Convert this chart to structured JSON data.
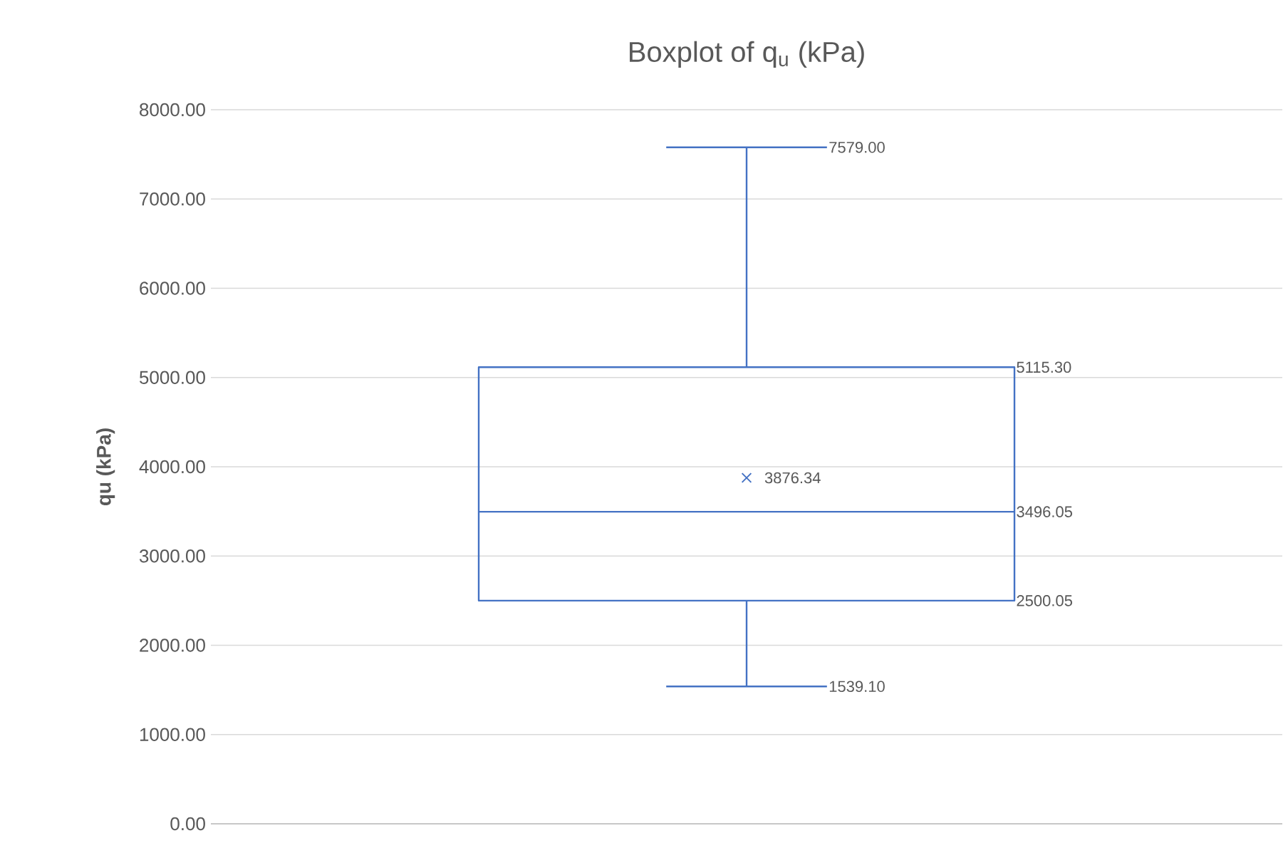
{
  "chart_data": {
    "type": "box",
    "title": "Boxplot of q$_{u}$ (kPa)",
    "ylabel": "qu (kPa)",
    "categories": [
      null
    ],
    "boxes": [
      {
        "low": 1539.1,
        "q1": 2500.05,
        "median": 3496.05,
        "q3": 5115.3,
        "high": 7579.0,
        "mean": 3876.34
      }
    ],
    "color": "#4472c4",
    "ylim": [
      0,
      8000
    ],
    "yticks": [
      {
        "value": 0,
        "label": "0.00"
      },
      {
        "value": 1000,
        "label": "1000.00"
      },
      {
        "value": 2000,
        "label": "2000.00"
      },
      {
        "value": 3000,
        "label": "3000.00"
      },
      {
        "value": 4000,
        "label": "4000.00"
      },
      {
        "value": 5000,
        "label": "5000.00"
      },
      {
        "value": 6000,
        "label": "6000.00"
      },
      {
        "value": 7000,
        "label": "7000.00"
      },
      {
        "value": 8000,
        "label": "8000.00"
      }
    ],
    "annotations": [
      "7579.00",
      "5115.30",
      "3876.34",
      "3496.05",
      "2500.05",
      "1539.10"
    ],
    "grid": "y",
    "tick_labels": "y",
    "marker": "cross"
  }
}
